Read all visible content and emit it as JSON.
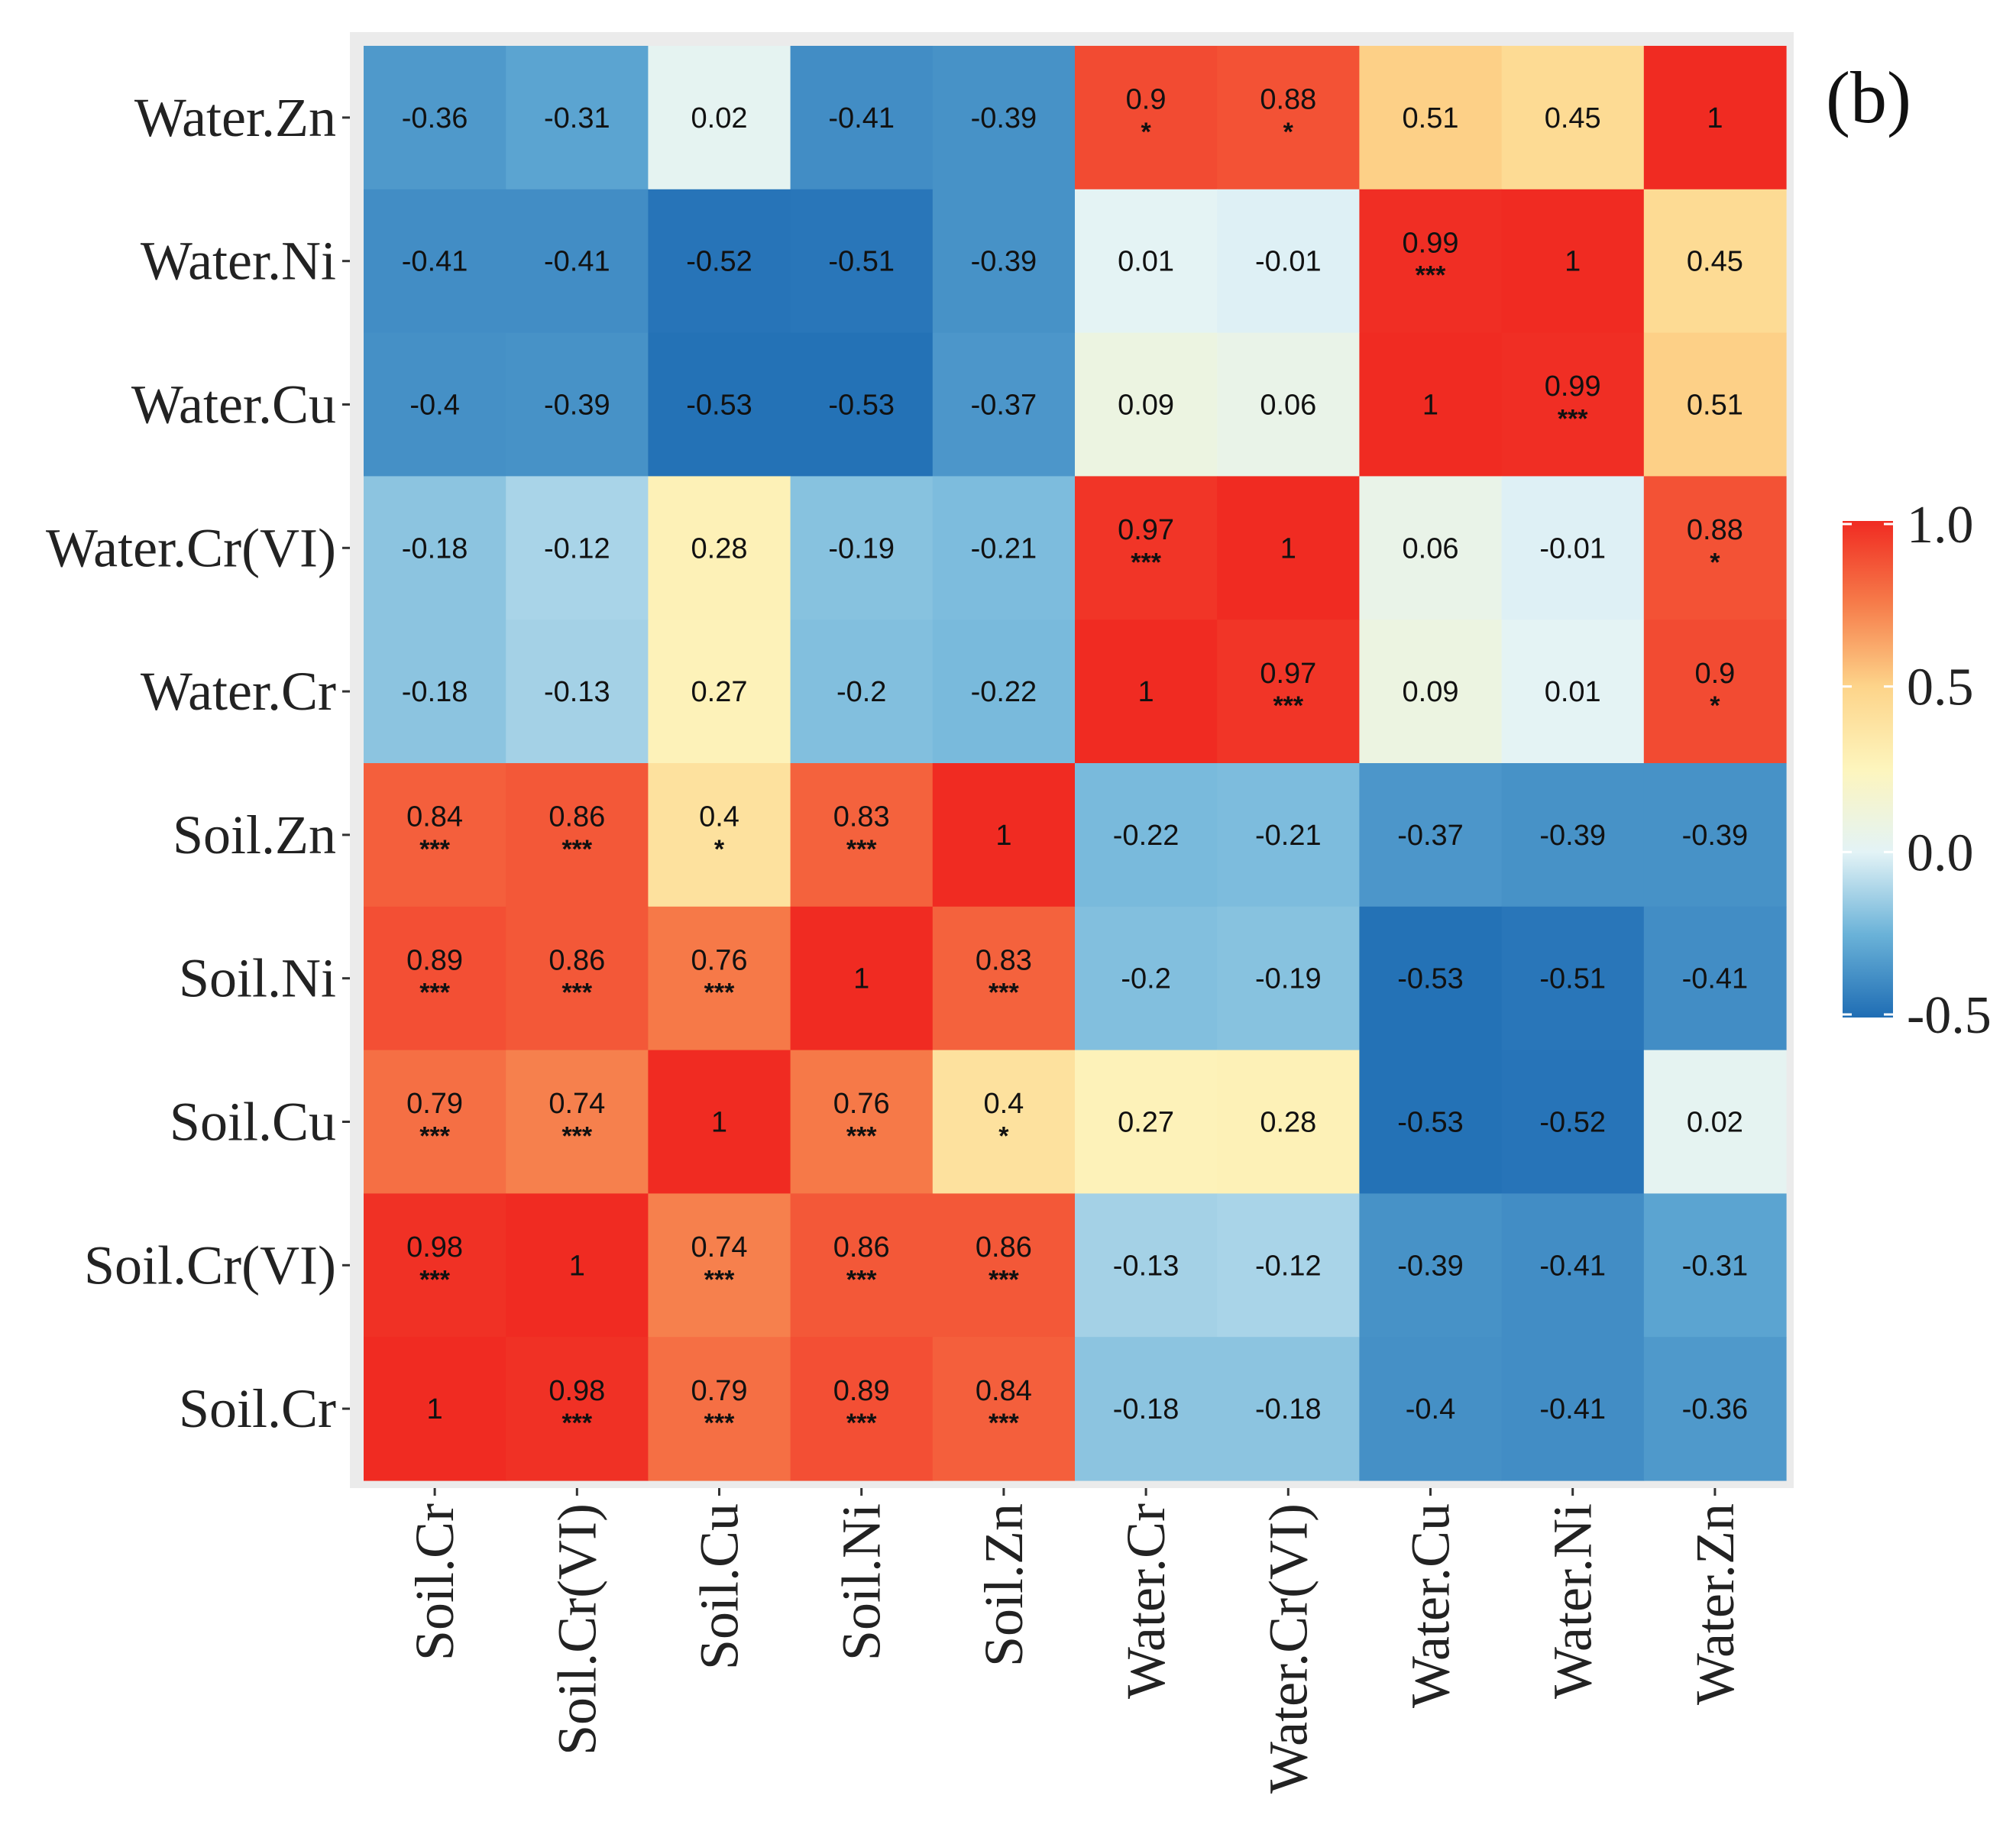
{
  "chart_data": {
    "type": "heatmap",
    "title": "",
    "panel_label": "(b)",
    "x_labels": [
      "Soil.Cr",
      "Soil.Cr(VI)",
      "Soil.Cu",
      "Soil.Ni",
      "Soil.Zn",
      "Water.Cr",
      "Water.Cr(VI)",
      "Water.Cu",
      "Water.Ni",
      "Water.Zn"
    ],
    "y_labels_top_to_bottom": [
      "Water.Zn",
      "Water.Ni",
      "Water.Cu",
      "Water.Cr(VI)",
      "Water.Cr",
      "Soil.Zn",
      "Soil.Ni",
      "Soil.Cu",
      "Soil.Cr(VI)",
      "Soil.Cr"
    ],
    "values": [
      [
        -0.36,
        -0.31,
        0.02,
        -0.41,
        -0.39,
        0.9,
        0.88,
        0.51,
        0.45,
        1
      ],
      [
        -0.41,
        -0.41,
        -0.52,
        -0.51,
        -0.39,
        0.01,
        -0.01,
        0.99,
        1,
        0.45
      ],
      [
        -0.4,
        -0.39,
        -0.53,
        -0.53,
        -0.37,
        0.09,
        0.06,
        1,
        0.99,
        0.51
      ],
      [
        -0.18,
        -0.12,
        0.28,
        -0.19,
        -0.21,
        0.97,
        1,
        0.06,
        -0.01,
        0.88
      ],
      [
        -0.18,
        -0.13,
        0.27,
        -0.2,
        -0.22,
        1,
        0.97,
        0.09,
        0.01,
        0.9
      ],
      [
        0.84,
        0.86,
        0.4,
        0.83,
        1,
        -0.22,
        -0.21,
        -0.37,
        -0.39,
        -0.39
      ],
      [
        0.89,
        0.86,
        0.76,
        1,
        0.83,
        -0.2,
        -0.19,
        -0.53,
        -0.51,
        -0.41
      ],
      [
        0.79,
        0.74,
        1,
        0.76,
        0.4,
        0.27,
        0.28,
        -0.53,
        -0.52,
        0.02
      ],
      [
        0.98,
        1,
        0.74,
        0.86,
        0.86,
        -0.13,
        -0.12,
        -0.39,
        -0.41,
        -0.31
      ],
      [
        1,
        0.98,
        0.79,
        0.89,
        0.84,
        -0.18,
        -0.18,
        -0.4,
        -0.41,
        -0.36
      ]
    ],
    "significance": [
      [
        "",
        "",
        "",
        "",
        "",
        "*",
        "*",
        "",
        "",
        ""
      ],
      [
        "",
        "",
        "",
        "",
        "",
        "",
        "",
        "***",
        "",
        ""
      ],
      [
        "",
        "",
        "",
        "",
        "",
        "",
        "",
        "",
        "***",
        ""
      ],
      [
        "",
        "",
        "",
        "",
        "",
        "***",
        "",
        "",
        "",
        "*"
      ],
      [
        "",
        "",
        "",
        "",
        "",
        "",
        "***",
        "",
        "",
        "*"
      ],
      [
        "***",
        "***",
        "*",
        "***",
        "",
        "",
        "",
        "",
        "",
        ""
      ],
      [
        "***",
        "***",
        "***",
        "",
        "***",
        "",
        "",
        "",
        "",
        ""
      ],
      [
        "***",
        "***",
        "",
        "***",
        "*",
        "",
        "",
        "",
        "",
        ""
      ],
      [
        "***",
        "",
        "***",
        "***",
        "***",
        "",
        "",
        "",
        "",
        ""
      ],
      [
        "",
        "***",
        "***",
        "***",
        "***",
        "",
        "",
        "",
        "",
        ""
      ]
    ],
    "color_scale": {
      "min": -0.5,
      "max": 1.0,
      "ticks": [
        "1.0",
        "0.5",
        "0.0",
        "-0.5"
      ],
      "tick_values": [
        1.0,
        0.5,
        0.0,
        -0.5
      ],
      "stops": [
        {
          "value": -0.55,
          "color": "#1f6db4"
        },
        {
          "value": -0.25,
          "color": "#6ab2d8"
        },
        {
          "value": 0.0,
          "color": "#e3f3f6"
        },
        {
          "value": 0.25,
          "color": "#fdf5bd"
        },
        {
          "value": 0.5,
          "color": "#fdd48a"
        },
        {
          "value": 0.75,
          "color": "#f67c4a"
        },
        {
          "value": 1.0,
          "color": "#f02b22"
        }
      ]
    },
    "legend_position": "right"
  }
}
